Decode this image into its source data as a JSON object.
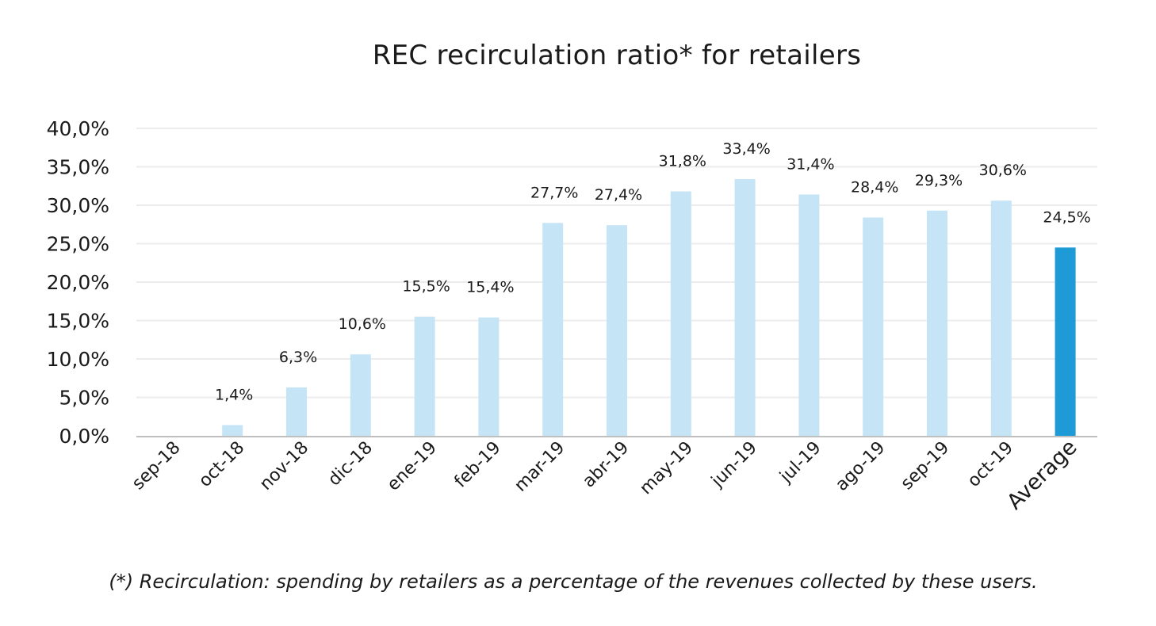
{
  "chart_data": {
    "type": "bar",
    "title": "REC recirculation ratio* for retailers",
    "categories": [
      "sep-18",
      "oct-18",
      "nov-18",
      "dic-18",
      "ene-19",
      "feb-19",
      "mar-19",
      "abr-19",
      "may-19",
      "jun-19",
      "jul-19",
      "ago-19",
      "sep-19",
      "oct-19",
      "Average"
    ],
    "values": [
      0,
      1.4,
      6.3,
      10.6,
      15.5,
      15.4,
      27.7,
      27.4,
      31.8,
      33.4,
      31.4,
      28.4,
      29.3,
      30.6,
      24.5
    ],
    "data_labels": [
      "",
      "1,4%",
      "6,3%",
      "10,6%",
      "15,5%",
      "15,4%",
      "27,7%",
      "27,4%",
      "31,8%",
      "33,4%",
      "31,4%",
      "28,4%",
      "29,3%",
      "30,6%",
      "24,5%"
    ],
    "y_ticks": [
      "0,0%",
      "5,0%",
      "10,0%",
      "15,0%",
      "20,0%",
      "25,0%",
      "30,0%",
      "35,0%",
      "40,0%"
    ],
    "ylim": [
      0,
      40
    ],
    "xlabel": "",
    "ylabel": "",
    "grid": true,
    "colors": {
      "bar": "#c5e5f6",
      "highlight": "#1e9ad6",
      "grid": "#ececec",
      "axis": "#bfbfbf"
    },
    "highlight_category": "Average"
  },
  "footnote": "(*) Recirculation: spending by retailers as a percentage of the revenues collected by these users."
}
